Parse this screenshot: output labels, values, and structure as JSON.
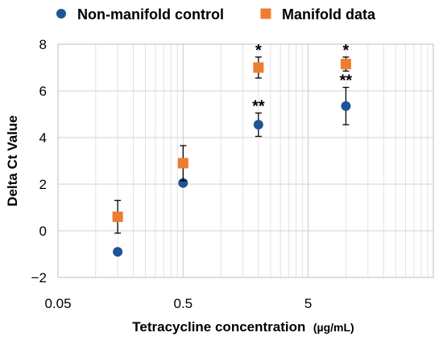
{
  "chart_data": {
    "type": "scatter",
    "xscale": "log",
    "xlim": [
      0.05,
      50
    ],
    "ylim": [
      -2,
      8
    ],
    "x_ticks": [
      "0.05",
      "0.5",
      "5"
    ],
    "y_ticks": [
      "−2",
      "0",
      "2",
      "4",
      "6",
      "8"
    ],
    "xlabel": "Tetracycline concentration",
    "xlabel_unit": "(µg/mL)",
    "ylabel": "Delta Ct Value",
    "grid": true,
    "legend_position": "top",
    "colors": {
      "series_0": "#1f5496",
      "series_1": "#ed7d31"
    },
    "series": [
      {
        "name": "Non-manifold control",
        "marker": "circle",
        "points": [
          {
            "x": 0.15,
            "y": -0.9,
            "err": 0.1,
            "annot": ""
          },
          {
            "x": 0.5,
            "y": 2.05,
            "err": 0.0,
            "annot": ""
          },
          {
            "x": 2.0,
            "y": 4.55,
            "err": 0.5,
            "annot": "**"
          },
          {
            "x": 10.0,
            "y": 5.35,
            "err": 0.8,
            "annot": "**"
          }
        ]
      },
      {
        "name": "Manifold data",
        "marker": "square",
        "points": [
          {
            "x": 0.15,
            "y": 0.6,
            "err": 0.7,
            "annot": ""
          },
          {
            "x": 0.5,
            "y": 2.9,
            "err": 0.75,
            "annot": ""
          },
          {
            "x": 2.0,
            "y": 7.0,
            "err": 0.45,
            "annot": "*"
          },
          {
            "x": 10.0,
            "y": 7.15,
            "err": 0.3,
            "annot": "*"
          }
        ]
      }
    ]
  }
}
